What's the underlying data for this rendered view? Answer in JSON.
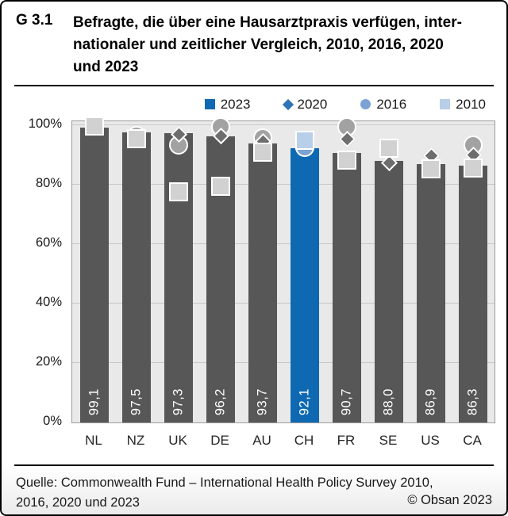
{
  "header": {
    "number": "G 3.1",
    "title": "Befragte, die über eine Hausarztpraxis verfügen, inter-\nnationaler und zeitlicher Vergleich, 2010, 2016, 2020\nund 2023"
  },
  "legend": {
    "items": [
      {
        "label": "2023",
        "shape": "square",
        "color": "#0e69b2"
      },
      {
        "label": "2020",
        "shape": "diamond",
        "color": "#2e74b6"
      },
      {
        "label": "2016",
        "shape": "circle",
        "color": "#7aa3d4"
      },
      {
        "label": "2010",
        "shape": "square",
        "color": "#b9cee8"
      }
    ]
  },
  "axis": {
    "yticks": [
      {
        "label": "0%",
        "value": 0
      },
      {
        "label": "20%",
        "value": 20
      },
      {
        "label": "40%",
        "value": 40
      },
      {
        "label": "60%",
        "value": 60
      },
      {
        "label": "80%",
        "value": 80
      },
      {
        "label": "100%",
        "value": 100
      }
    ]
  },
  "chart_data": {
    "type": "bar",
    "title": "Befragte, die über eine Hausarztpraxis verfügen, internationaler und zeitlicher Vergleich, 2010, 2016, 2020 und 2023",
    "categories": [
      "NL",
      "NZ",
      "UK",
      "DE",
      "AU",
      "CH",
      "FR",
      "SE",
      "US",
      "CA"
    ],
    "highlight_category": "CH",
    "ylim": [
      0,
      100
    ],
    "grid": true,
    "legend_position": "top",
    "series": [
      {
        "name": "2023",
        "marker": "bar",
        "values": [
          99.1,
          97.5,
          97.3,
          96.2,
          93.7,
          92.1,
          90.7,
          88.0,
          86.9,
          86.3
        ],
        "labels": [
          "99,1",
          "97,5",
          "97,3",
          "96,2",
          "93,7",
          "92,1",
          "90,7",
          "88,0",
          "86,9",
          "86,3"
        ]
      },
      {
        "name": "2016",
        "marker": "circle",
        "values": [
          null,
          96.6,
          93.3,
          99.4,
          95.7,
          92.6,
          99.5,
          null,
          null,
          93.3
        ]
      },
      {
        "name": "2020",
        "marker": "diamond",
        "values": [
          null,
          null,
          97.0,
          96.4,
          94.5,
          null,
          95.4,
          87.3,
          89.8,
          90.0
        ]
      },
      {
        "name": "2010",
        "marker": "square",
        "values": [
          99.7,
          95.5,
          77.5,
          79.5,
          91.0,
          95.0,
          88.3,
          92.3,
          85.3,
          85.5
        ]
      }
    ]
  },
  "colors": {
    "bar_gray": "#575757",
    "bar_highlight": "#0e69b2",
    "marker_gray_circle": "#a2a2a2",
    "marker_gray_diamond": "#6e6e6e",
    "marker_gray_square": "#d1d1d1",
    "marker_blue_circle": "#7aa3d4",
    "marker_blue_square": "#b9cee8",
    "marker_blue_diamond": "#2e74b6",
    "plot_background": "#e9e9e9",
    "gridline": "#c7c7c7"
  },
  "footer": {
    "source": "Quelle: Commonwealth Fund – International Health Policy Survey 2010,\n2016, 2020 und 2023",
    "copyright": "© Obsan 2023"
  }
}
